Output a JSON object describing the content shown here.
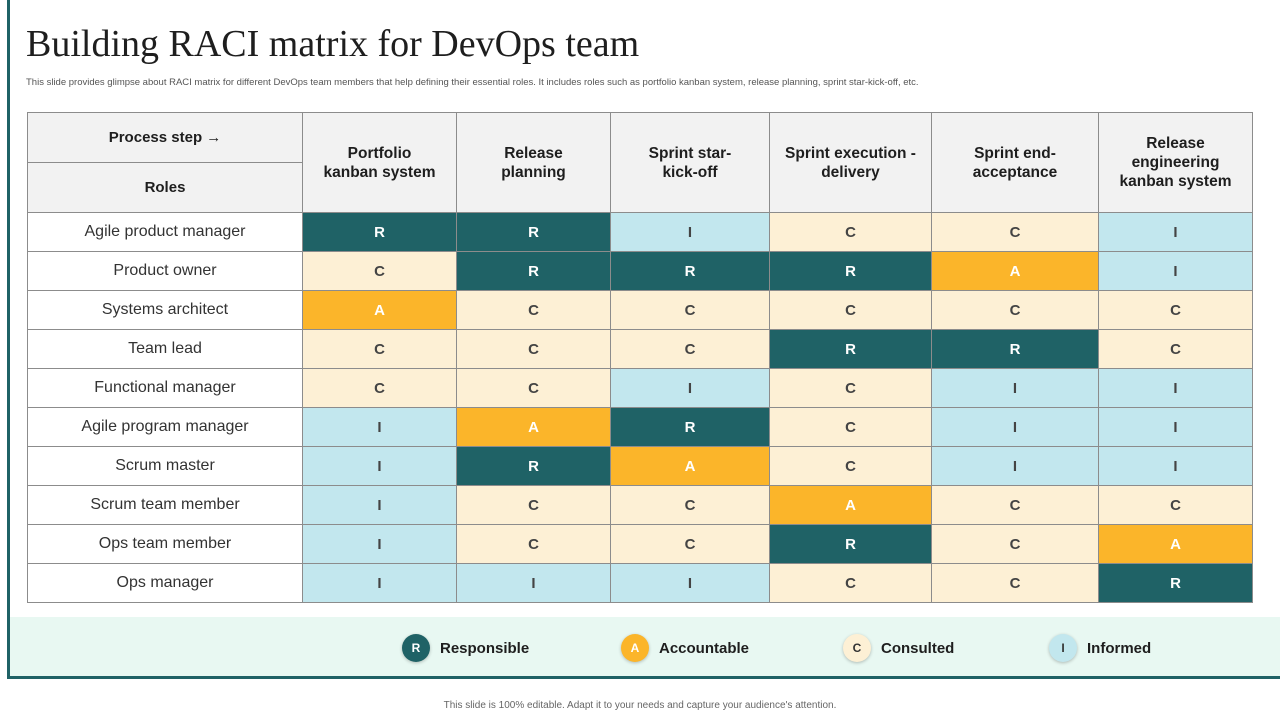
{
  "slide": {
    "title": "Building RACI matrix for DevOps team",
    "subtitle": "This slide provides glimpse about RACI matrix for different DevOps team members that help defining their essential roles. It includes roles such as portfolio kanban system, release planning, sprint star-kick-off, etc.",
    "footer": "This slide is 100% editable. Adapt it to your needs and capture your audience's attention."
  },
  "table": {
    "corner_top": "Process step →",
    "corner_bottom": "Roles",
    "steps": [
      [
        "Portfolio",
        "kanban system"
      ],
      [
        "Release",
        "planning"
      ],
      [
        "Sprint star-",
        "kick-off"
      ],
      [
        "Sprint execution -",
        "delivery"
      ],
      [
        "Sprint end-",
        "acceptance"
      ],
      [
        "Release",
        "engineering",
        "kanban system"
      ]
    ],
    "rows": [
      {
        "role": "Agile product manager",
        "values": [
          "R",
          "R",
          "I",
          "C",
          "C",
          "I"
        ]
      },
      {
        "role": "Product owner",
        "values": [
          "C",
          "R",
          "R",
          "R",
          "A",
          "I"
        ]
      },
      {
        "role": "Systems architect",
        "values": [
          "A",
          "C",
          "C",
          "C",
          "C",
          "C"
        ]
      },
      {
        "role": "Team lead",
        "values": [
          "C",
          "C",
          "C",
          "R",
          "R",
          "C"
        ]
      },
      {
        "role": "Functional manager",
        "values": [
          "C",
          "C",
          "I",
          "C",
          "I",
          "I"
        ]
      },
      {
        "role": "Agile program manager",
        "values": [
          "I",
          "A",
          "R",
          "C",
          "I",
          "I"
        ]
      },
      {
        "role": "Scrum master",
        "values": [
          "I",
          "R",
          "A",
          "C",
          "I",
          "I"
        ]
      },
      {
        "role": "Scrum team member",
        "values": [
          "I",
          "C",
          "C",
          "A",
          "C",
          "C"
        ]
      },
      {
        "role": "Ops team member",
        "values": [
          "I",
          "C",
          "C",
          "R",
          "C",
          "A"
        ]
      },
      {
        "role": "Ops manager",
        "values": [
          "I",
          "I",
          "I",
          "C",
          "C",
          "R"
        ]
      }
    ]
  },
  "legend": [
    {
      "key": "R",
      "label": "Responsible"
    },
    {
      "key": "A",
      "label": "Accountable"
    },
    {
      "key": "C",
      "label": "Consulted"
    },
    {
      "key": "I",
      "label": "Informed"
    }
  ],
  "colors": {
    "responsible": "#1f6266",
    "accountable": "#fbb52a",
    "consulted": "#fdf0d5",
    "informed": "#c2e7ee",
    "legend_background": "#e8f8f2"
  }
}
